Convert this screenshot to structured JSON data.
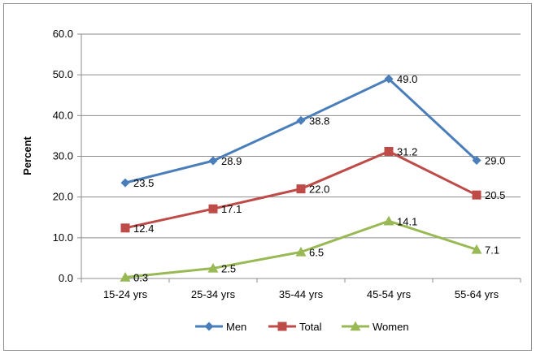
{
  "chart_data": {
    "type": "line",
    "title": "",
    "xlabel": "",
    "ylabel": "Percent",
    "ylim": [
      0,
      60
    ],
    "yticks": [
      "0.0",
      "10.0",
      "20.0",
      "30.0",
      "40.0",
      "50.0",
      "60.0"
    ],
    "categories": [
      "15-24 yrs",
      "25-34 yrs",
      "35-44 yrs",
      "45-54 yrs",
      "55-64 yrs"
    ],
    "grid": true,
    "legend_position": "bottom",
    "series": [
      {
        "name": "Men",
        "color": "#4a7ebb",
        "marker": "diamond",
        "values": [
          23.5,
          28.9,
          38.8,
          49.0,
          29.0
        ],
        "labels": [
          "23.5",
          "28.9",
          "38.8",
          "49.0",
          "29.0"
        ]
      },
      {
        "name": "Total",
        "color": "#be4b48",
        "marker": "square",
        "values": [
          12.4,
          17.1,
          22.0,
          31.2,
          20.5
        ],
        "labels": [
          "12.4",
          "17.1",
          "22.0",
          "31.2",
          "20.5"
        ]
      },
      {
        "name": "Women",
        "color": "#98b954",
        "marker": "triangle",
        "values": [
          0.3,
          2.5,
          6.5,
          14.1,
          7.1
        ],
        "labels": [
          "0.3",
          "2.5",
          "6.5",
          "14.1",
          "7.1"
        ]
      }
    ]
  }
}
